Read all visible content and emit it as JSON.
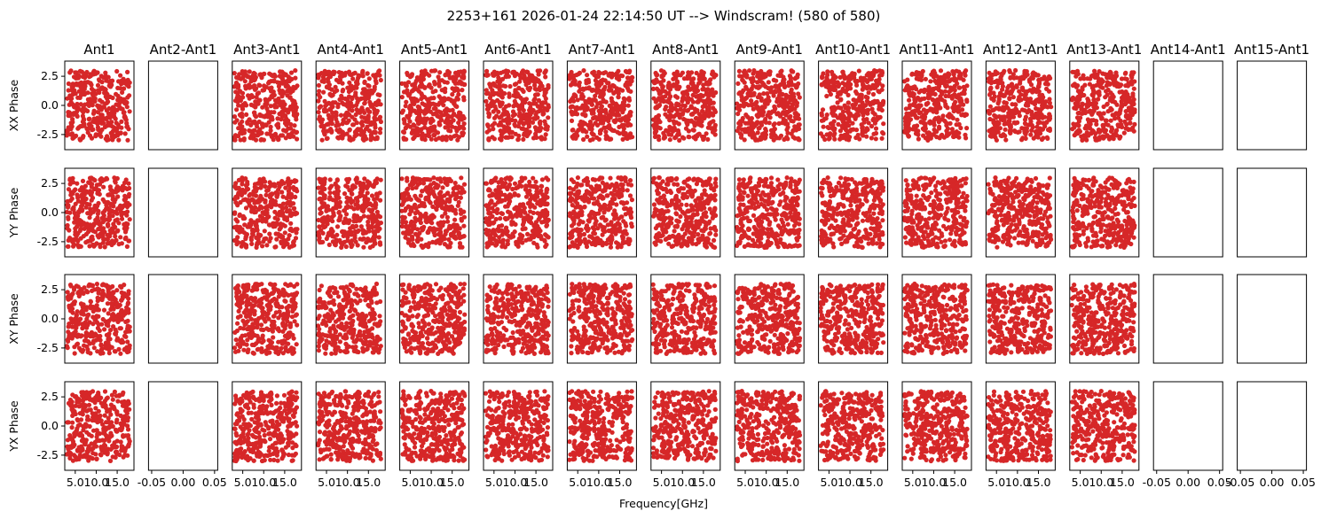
{
  "figure": {
    "title": "2253+161 2026-01-24 22:14:50 UT --> Windscram! (580 of 580)",
    "xlabel": "Frequency[GHz]",
    "marker_color": "#d62728"
  },
  "chart_data": {
    "type": "scatter",
    "title": "2253+161 2026-01-24 22:14:50 UT --> Windscram! (580 of 580)",
    "xlabel": "Frequency[GHz]",
    "columns": [
      "Ant1",
      "Ant2-Ant1",
      "Ant3-Ant1",
      "Ant4-Ant1",
      "Ant5-Ant1",
      "Ant6-Ant1",
      "Ant7-Ant1",
      "Ant8-Ant1",
      "Ant9-Ant1",
      "Ant10-Ant1",
      "Ant11-Ant1",
      "Ant12-Ant1",
      "Ant13-Ant1",
      "Ant14-Ant1",
      "Ant15-Ant1"
    ],
    "rows": [
      "XX Phase",
      "YY Phase",
      "XY Phase",
      "YX Phase"
    ],
    "empty_columns": [
      "Ant2-Ant1",
      "Ant14-Ant1",
      "Ant15-Ant1"
    ],
    "ylim": [
      -3.8,
      3.8
    ],
    "yticks": [
      "2.5",
      "0.0",
      "-2.5"
    ],
    "xlim_data": [
      2.5,
      19.0
    ],
    "xticks_data": [
      "5.0",
      "10.0",
      "15.0"
    ],
    "xlim_empty": [
      -0.055,
      0.055
    ],
    "xticks_empty": [
      "-0.05",
      "0.00",
      "0.05"
    ],
    "points_per_panel": 350,
    "x_range_data": [
      3.0,
      18.0
    ],
    "y_range_data": [
      -3.0,
      3.0
    ],
    "grid": false
  }
}
